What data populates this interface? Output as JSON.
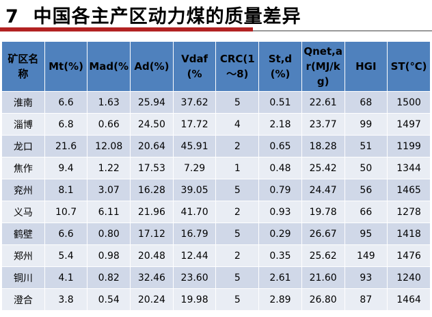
{
  "title": "7  中国各主产区动力煤的质量差异",
  "table": {
    "header": [
      "矿区名称",
      "Mt(%)",
      "Mad(%",
      "Ad(%)",
      "Vdaf(%",
      "CRC(1～8)",
      "St,d(%)",
      "Qnet,ar(MJ/kg)",
      "HGI",
      "ST(℃)"
    ],
    "rows": [
      [
        "淮南",
        "6.6",
        "1.63",
        "25.94",
        "37.62",
        "5",
        "0.51",
        "22.61",
        "68",
        "1500"
      ],
      [
        "淄博",
        "6.8",
        "0.66",
        "24.50",
        "17.72",
        "4",
        "2.18",
        "23.77",
        "99",
        "1497"
      ],
      [
        "龙口",
        "21.6",
        "12.08",
        "20.64",
        "45.91",
        "2",
        "0.65",
        "18.28",
        "51",
        "1199"
      ],
      [
        "焦作",
        "9.4",
        "1.22",
        "17.53",
        "7.29",
        "1",
        "0.48",
        "25.42",
        "50",
        "1344"
      ],
      [
        "兖州",
        "8.1",
        "3.07",
        "16.28",
        "39.05",
        "5",
        "0.79",
        "24.47",
        "56",
        "1465"
      ],
      [
        "义马",
        "10.7",
        "6.11",
        "21.96",
        "41.70",
        "2",
        "0.93",
        "19.78",
        "66",
        "1278"
      ],
      [
        "鹤壁",
        "6.6",
        "0.80",
        "17.12",
        "16.79",
        "5",
        "0.29",
        "26.67",
        "95",
        "1418"
      ],
      [
        "郑州",
        "5.4",
        "0.98",
        "20.48",
        "12.44",
        "2",
        "0.35",
        "25.62",
        "149",
        "1476"
      ],
      [
        "铜川",
        "4.1",
        "0.82",
        "32.46",
        "23.60",
        "5",
        "2.61",
        "21.60",
        "93",
        "1240"
      ],
      [
        "澄合",
        "3.8",
        "0.54",
        "20.24",
        "19.98",
        "5",
        "2.89",
        "26.80",
        "87",
        "1464"
      ]
    ]
  }
}
